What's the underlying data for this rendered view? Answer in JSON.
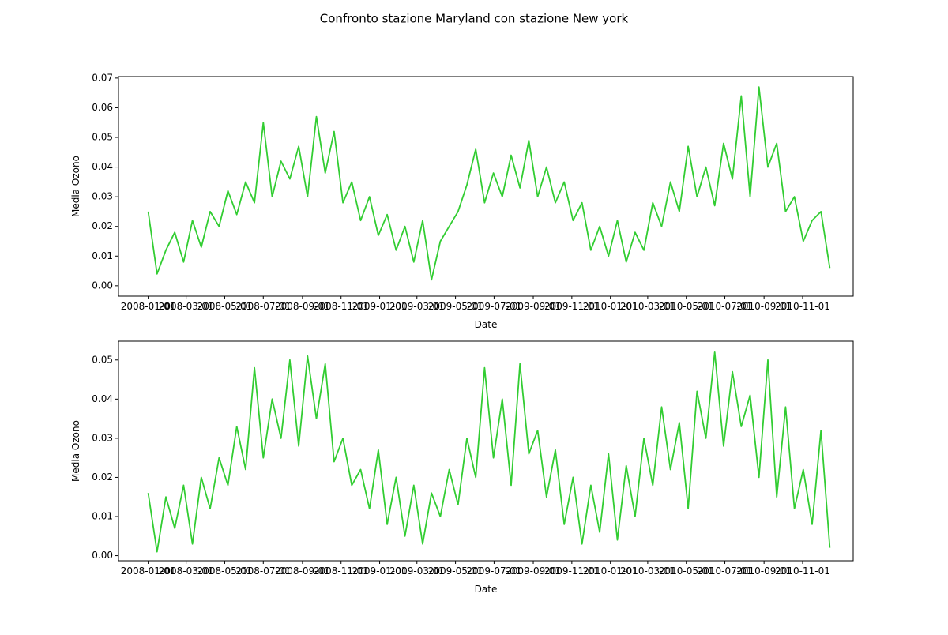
{
  "title": "Confronto stazione Maryland con stazione New york",
  "chart_data": [
    {
      "type": "line",
      "xlabel": "Date",
      "ylabel": "Media Ozono",
      "color": "#32cd32",
      "x": [
        "2008-01-01",
        "2008-01-15",
        "2008-01-29",
        "2008-02-12",
        "2008-02-26",
        "2008-03-11",
        "2008-03-25",
        "2008-04-08",
        "2008-04-22",
        "2008-05-06",
        "2008-05-20",
        "2008-06-03",
        "2008-06-17",
        "2008-07-01",
        "2008-07-15",
        "2008-07-29",
        "2008-08-12",
        "2008-08-26",
        "2008-09-09",
        "2008-09-23",
        "2008-10-07",
        "2008-10-21",
        "2008-11-04",
        "2008-11-18",
        "2008-12-02",
        "2008-12-16",
        "2008-12-30",
        "2009-01-13",
        "2009-01-27",
        "2009-02-10",
        "2009-02-24",
        "2009-03-10",
        "2009-03-24",
        "2009-04-07",
        "2009-04-21",
        "2009-05-05",
        "2009-05-19",
        "2009-06-02",
        "2009-06-16",
        "2009-06-30",
        "2009-07-14",
        "2009-07-28",
        "2009-08-11",
        "2009-08-25",
        "2009-09-08",
        "2009-09-22",
        "2009-10-06",
        "2009-10-20",
        "2009-11-03",
        "2009-11-17",
        "2009-12-01",
        "2009-12-15",
        "2009-12-29",
        "2010-01-12",
        "2010-01-26",
        "2010-02-09",
        "2010-02-23",
        "2010-03-09",
        "2010-03-23",
        "2010-04-06",
        "2010-04-20",
        "2010-05-04",
        "2010-05-18",
        "2010-06-01",
        "2010-06-15",
        "2010-06-29",
        "2010-07-13",
        "2010-07-27",
        "2010-08-10",
        "2010-08-24",
        "2010-09-07",
        "2010-09-21",
        "2010-10-05",
        "2010-10-19",
        "2010-11-02",
        "2010-11-16",
        "2010-11-30",
        "2010-12-14"
      ],
      "values": [
        0.025,
        0.004,
        0.012,
        0.018,
        0.008,
        0.022,
        0.013,
        0.025,
        0.02,
        0.032,
        0.024,
        0.035,
        0.028,
        0.055,
        0.03,
        0.042,
        0.036,
        0.047,
        0.03,
        0.057,
        0.038,
        0.052,
        0.028,
        0.035,
        0.022,
        0.03,
        0.017,
        0.024,
        0.012,
        0.02,
        0.008,
        0.022,
        0.002,
        0.015,
        0.02,
        0.025,
        0.034,
        0.046,
        0.028,
        0.038,
        0.03,
        0.044,
        0.033,
        0.049,
        0.03,
        0.04,
        0.028,
        0.035,
        0.022,
        0.028,
        0.012,
        0.02,
        0.01,
        0.022,
        0.008,
        0.018,
        0.012,
        0.028,
        0.02,
        0.035,
        0.025,
        0.047,
        0.03,
        0.04,
        0.027,
        0.048,
        0.036,
        0.064,
        0.03,
        0.067,
        0.04,
        0.048,
        0.025,
        0.03,
        0.015,
        0.022,
        0.025,
        0.006
      ],
      "xlim": [
        "2007-11-15",
        "2011-01-20"
      ],
      "xticks": [
        "2008-01-01",
        "2008-03-01",
        "2008-05-01",
        "2008-07-01",
        "2008-09-01",
        "2008-11-01",
        "2009-01-01",
        "2009-03-01",
        "2009-05-01",
        "2009-07-01",
        "2009-09-01",
        "2009-11-01",
        "2010-01-01",
        "2010-03-01",
        "2010-05-01",
        "2010-07-01",
        "2010-09-01",
        "2010-11-01"
      ],
      "ylim": [
        -0.0035,
        0.0705
      ],
      "yticks": [
        {
          "value": 0,
          "label": "0.00"
        },
        {
          "value": 0.01,
          "label": "0.01"
        },
        {
          "value": 0.02,
          "label": "0.02"
        },
        {
          "value": 0.03,
          "label": "0.03"
        },
        {
          "value": 0.04,
          "label": "0.04"
        },
        {
          "value": 0.05,
          "label": "0.05"
        },
        {
          "value": 0.06,
          "label": "0.06"
        },
        {
          "value": 0.07,
          "label": "0.07"
        }
      ]
    },
    {
      "type": "line",
      "xlabel": "Date",
      "ylabel": "Media Ozono",
      "color": "#32cd32",
      "x": [
        "2008-01-01",
        "2008-01-15",
        "2008-01-29",
        "2008-02-12",
        "2008-02-26",
        "2008-03-11",
        "2008-03-25",
        "2008-04-08",
        "2008-04-22",
        "2008-05-06",
        "2008-05-20",
        "2008-06-03",
        "2008-06-17",
        "2008-07-01",
        "2008-07-15",
        "2008-07-29",
        "2008-08-12",
        "2008-08-26",
        "2008-09-09",
        "2008-09-23",
        "2008-10-07",
        "2008-10-21",
        "2008-11-04",
        "2008-11-18",
        "2008-12-02",
        "2008-12-16",
        "2008-12-30",
        "2009-01-13",
        "2009-01-27",
        "2009-02-10",
        "2009-02-24",
        "2009-03-10",
        "2009-03-24",
        "2009-04-07",
        "2009-04-21",
        "2009-05-05",
        "2009-05-19",
        "2009-06-02",
        "2009-06-16",
        "2009-06-30",
        "2009-07-14",
        "2009-07-28",
        "2009-08-11",
        "2009-08-25",
        "2009-09-08",
        "2009-09-22",
        "2009-10-06",
        "2009-10-20",
        "2009-11-03",
        "2009-11-17",
        "2009-12-01",
        "2009-12-15",
        "2009-12-29",
        "2010-01-12",
        "2010-01-26",
        "2010-02-09",
        "2010-02-23",
        "2010-03-09",
        "2010-03-23",
        "2010-04-06",
        "2010-04-20",
        "2010-05-04",
        "2010-05-18",
        "2010-06-01",
        "2010-06-15",
        "2010-06-29",
        "2010-07-13",
        "2010-07-27",
        "2010-08-10",
        "2010-08-24",
        "2010-09-07",
        "2010-09-21",
        "2010-10-05",
        "2010-10-19",
        "2010-11-02",
        "2010-11-16",
        "2010-11-30",
        "2010-12-14"
      ],
      "values": [
        0.016,
        0.001,
        0.015,
        0.007,
        0.018,
        0.003,
        0.02,
        0.012,
        0.025,
        0.018,
        0.033,
        0.022,
        0.048,
        0.025,
        0.04,
        0.03,
        0.05,
        0.028,
        0.051,
        0.035,
        0.049,
        0.024,
        0.03,
        0.018,
        0.022,
        0.012,
        0.027,
        0.008,
        0.02,
        0.005,
        0.018,
        0.003,
        0.016,
        0.01,
        0.022,
        0.013,
        0.03,
        0.02,
        0.048,
        0.025,
        0.04,
        0.018,
        0.049,
        0.026,
        0.032,
        0.015,
        0.027,
        0.008,
        0.02,
        0.003,
        0.018,
        0.006,
        0.026,
        0.004,
        0.023,
        0.01,
        0.03,
        0.018,
        0.038,
        0.022,
        0.034,
        0.012,
        0.042,
        0.03,
        0.052,
        0.028,
        0.047,
        0.033,
        0.041,
        0.02,
        0.05,
        0.015,
        0.038,
        0.012,
        0.022,
        0.008,
        0.032,
        0.002
      ],
      "xlim": [
        "2007-11-15",
        "2011-01-20"
      ],
      "xticks": [
        "2008-01-01",
        "2008-03-01",
        "2008-05-01",
        "2008-07-01",
        "2008-09-01",
        "2008-11-01",
        "2009-01-01",
        "2009-03-01",
        "2009-05-01",
        "2009-07-01",
        "2009-09-01",
        "2009-11-01",
        "2010-01-01",
        "2010-03-01",
        "2010-05-01",
        "2010-07-01",
        "2010-09-01",
        "2010-11-01"
      ],
      "ylim": [
        -0.0013,
        0.0548
      ],
      "yticks": [
        {
          "value": 0,
          "label": "0.00"
        },
        {
          "value": 0.01,
          "label": "0.01"
        },
        {
          "value": 0.02,
          "label": "0.02"
        },
        {
          "value": 0.03,
          "label": "0.03"
        },
        {
          "value": 0.04,
          "label": "0.04"
        },
        {
          "value": 0.05,
          "label": "0.05"
        }
      ]
    }
  ]
}
